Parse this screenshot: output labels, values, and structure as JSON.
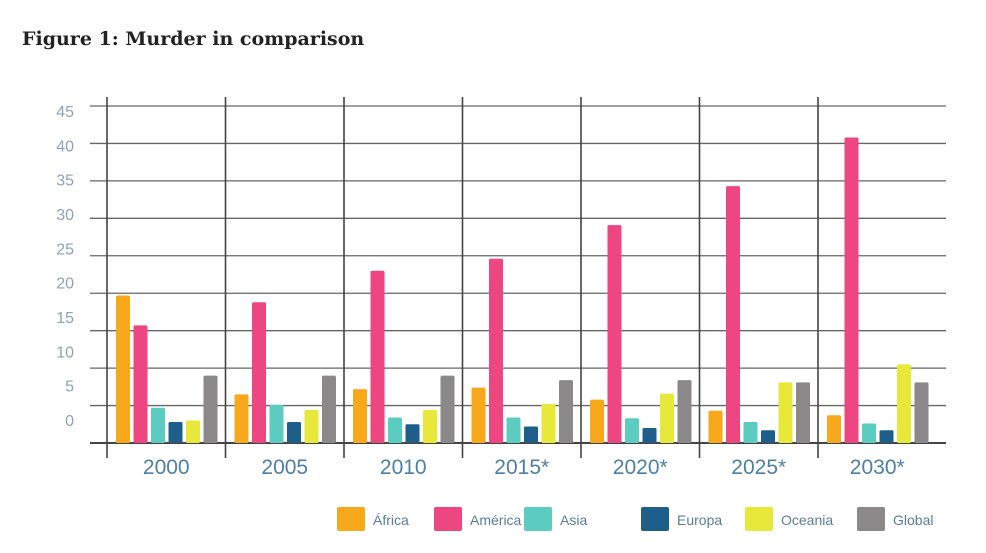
{
  "title": "Figure 1: Murder in comparison",
  "chart_data": {
    "type": "bar",
    "title": "Figure 1: Murder in comparison",
    "xlabel": "",
    "ylabel": "",
    "ylim": [
      0,
      45
    ],
    "y_ticks": [
      "0",
      "5",
      "10",
      "15",
      "20",
      "25",
      "30",
      "35",
      "40",
      "45"
    ],
    "grid": true,
    "legend_position": "bottom",
    "categories": [
      "2000",
      "2005",
      "2010",
      "2015*",
      "2020*",
      "2025*",
      "2030*"
    ],
    "series": [
      {
        "name": "África",
        "color": "#f7a81b",
        "values": [
          19.7,
          6.5,
          7.2,
          7.4,
          5.8,
          4.3,
          3.7
        ]
      },
      {
        "name": "América",
        "color": "#ee4680",
        "values": [
          15.7,
          18.8,
          23.0,
          24.6,
          29.1,
          34.3,
          40.8
        ]
      },
      {
        "name": "Asia",
        "color": "#5ccbc0",
        "values": [
          4.7,
          5.1,
          3.4,
          3.4,
          3.3,
          2.8,
          2.6
        ]
      },
      {
        "name": "Europa",
        "color": "#1d5f8a",
        "values": [
          2.8,
          2.8,
          2.5,
          2.2,
          2.0,
          1.7,
          1.7
        ]
      },
      {
        "name": "Oceania",
        "color": "#e8e83a",
        "values": [
          3.0,
          4.4,
          4.4,
          5.2,
          6.6,
          8.1,
          10.5
        ]
      },
      {
        "name": "Global",
        "color": "#8a8888",
        "values": [
          9.0,
          9.0,
          9.0,
          8.4,
          8.4,
          8.1,
          8.1
        ]
      }
    ]
  }
}
